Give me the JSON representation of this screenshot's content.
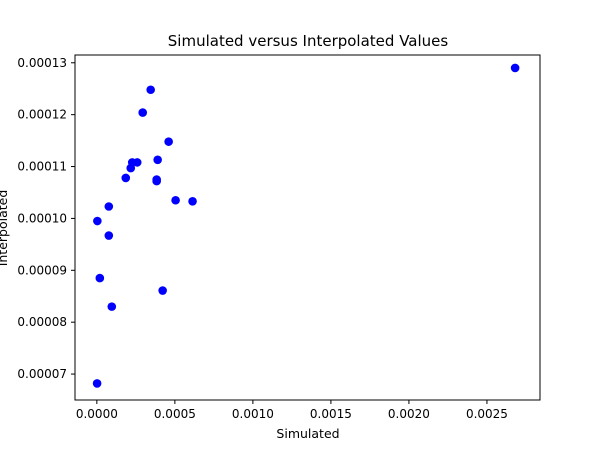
{
  "chart_data": {
    "type": "scatter",
    "title": "Simulated versus Interpolated Values",
    "xlabel": "Simulated",
    "ylabel": "Interpolated",
    "xlim": [
      -0.00014,
      0.00284
    ],
    "ylim": [
      6.5e-05,
      0.0001315
    ],
    "xticks": [
      0,
      0.0005,
      0.001,
      0.0015,
      0.002,
      0.0025
    ],
    "xtick_labels": [
      "0.0000",
      "0.0005",
      "0.0010",
      "0.0015",
      "0.0020",
      "0.0025"
    ],
    "yticks": [
      7e-05,
      8e-05,
      9e-05,
      0.0001,
      0.00011,
      0.00012,
      0.00013
    ],
    "ytick_labels": [
      "0.00007",
      "0.00008",
      "0.00009",
      "0.00010",
      "0.00011",
      "0.00012",
      "0.00013"
    ],
    "grid": false,
    "marker_color": "#0000ff",
    "points": [
      {
        "x": 1.6e-06,
        "y": 6.82e-05
      },
      {
        "x": 3.3e-06,
        "y": 9.95e-05
      },
      {
        "x": 1.91e-05,
        "y": 8.85e-05
      },
      {
        "x": 7.67e-05,
        "y": 0.0001023
      },
      {
        "x": 7.67e-05,
        "y": 9.67e-05
      },
      {
        "x": 9.58e-05,
        "y": 8.3e-05
      },
      {
        "x": 0.0001853,
        "y": 0.0001078
      },
      {
        "x": 0.0002173,
        "y": 0.0001097
      },
      {
        "x": 0.0002268,
        "y": 0.0001108
      },
      {
        "x": 0.0002588,
        "y": 0.0001108
      },
      {
        "x": 0.0002939,
        "y": 0.0001204
      },
      {
        "x": 0.000345,
        "y": 0.0001248
      },
      {
        "x": 0.0003834,
        "y": 0.0001072
      },
      {
        "x": 0.0003834,
        "y": 0.0001075
      },
      {
        "x": 0.0003898,
        "y": 0.0001113
      },
      {
        "x": 0.0004217,
        "y": 8.61e-05
      },
      {
        "x": 0.0004601,
        "y": 0.0001148
      },
      {
        "x": 0.0005048,
        "y": 0.0001035
      },
      {
        "x": 0.0006134,
        "y": 0.0001033
      },
      {
        "x": 0.0026805,
        "y": 0.000129
      }
    ]
  }
}
